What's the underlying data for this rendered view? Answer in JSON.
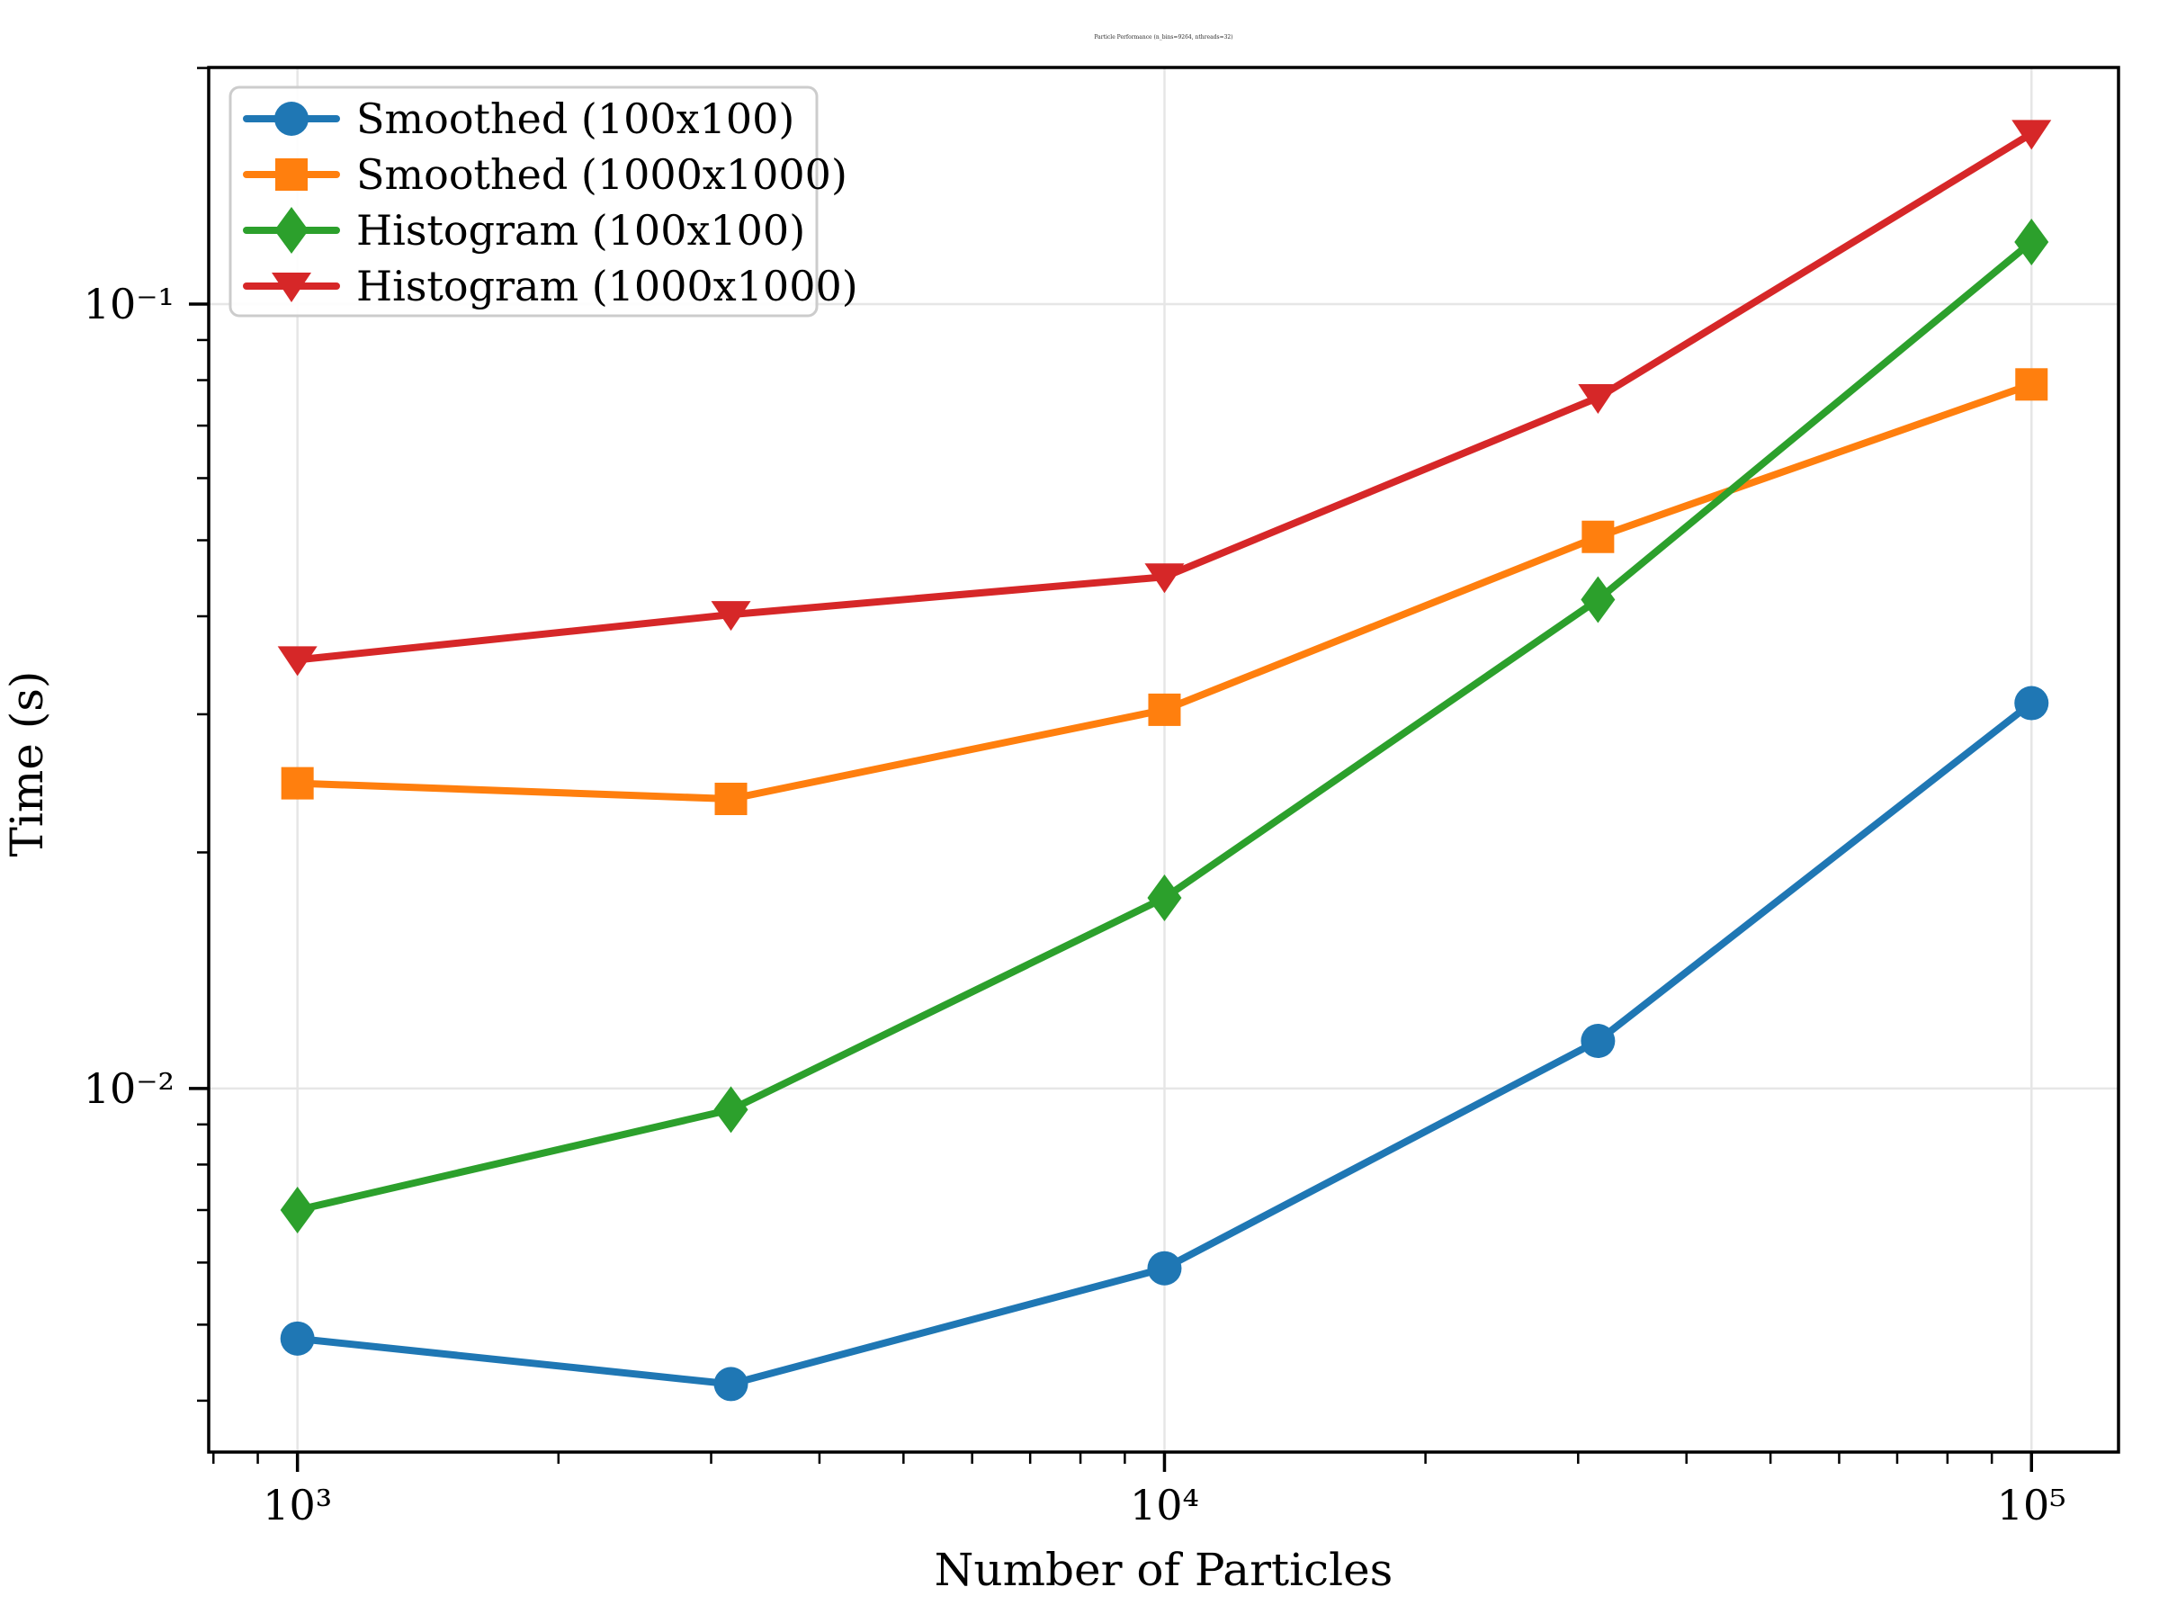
{
  "chart_data": {
    "type": "line",
    "title": "Particle Performance (n_bins=9264, nthreads=32)",
    "xlabel": "Number of Particles",
    "ylabel": "Time (s)",
    "x_scale": "log",
    "y_scale": "log",
    "xlim": [
      790,
      126000
    ],
    "ylim": [
      0.00344,
      0.2003
    ],
    "grid": true,
    "legend_position": "upper-left",
    "x": [
      1000,
      3162,
      10000,
      31623,
      100000
    ],
    "x_ticks": [
      {
        "value": 1000,
        "label": "10³"
      },
      {
        "value": 10000,
        "label": "10⁴"
      },
      {
        "value": 100000,
        "label": "10⁵"
      }
    ],
    "y_ticks": [
      {
        "value": 0.1,
        "label": "10⁻¹"
      },
      {
        "value": 0.01,
        "label": "10⁻²"
      }
    ],
    "series": [
      {
        "name": "Smoothed (100x100)",
        "color": "#1f77b4",
        "marker": "circle",
        "values": [
          0.0048,
          0.0042,
          0.0059,
          0.0115,
          0.031
        ]
      },
      {
        "name": "Smoothed (1000x1000)",
        "color": "#ff7f0e",
        "marker": "square",
        "values": [
          0.0245,
          0.0234,
          0.0304,
          0.0505,
          0.079
        ]
      },
      {
        "name": "Histogram (100x100)",
        "color": "#2ca02c",
        "marker": "diamond",
        "values": [
          0.007,
          0.0094,
          0.0175,
          0.042,
          0.12
        ]
      },
      {
        "name": "Histogram (1000x1000)",
        "color": "#d62728",
        "marker": "triangle-down",
        "values": [
          0.0352,
          0.0402,
          0.0449,
          0.076,
          0.165
        ]
      }
    ],
    "colors": {
      "grid": "#e6e6e6",
      "spine": "#000000",
      "legend_border": "#cccccc",
      "background": "#ffffff"
    }
  }
}
